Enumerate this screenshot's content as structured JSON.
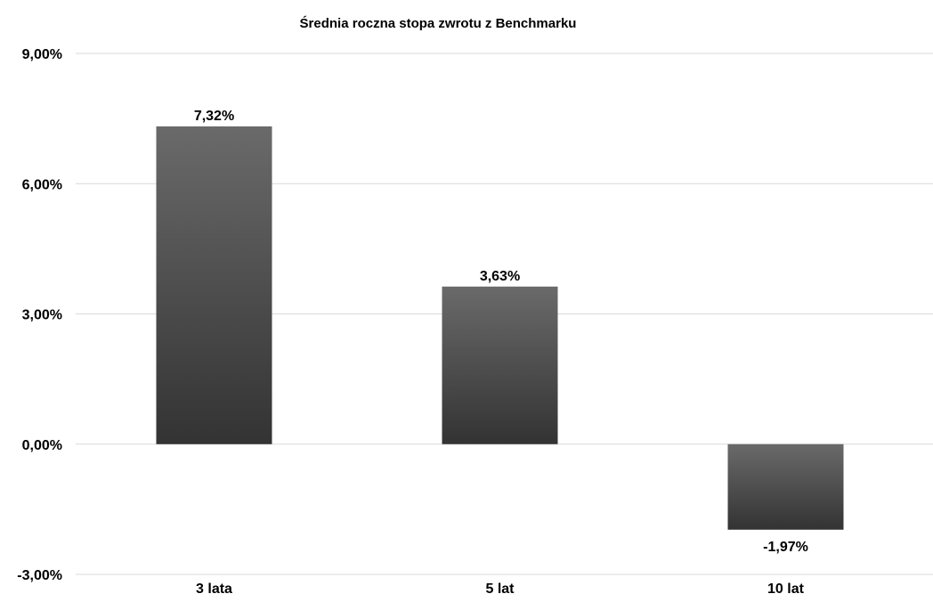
{
  "chart_data": {
    "type": "bar",
    "title": "Średnia roczna stopa zwrotu z Benchmarku",
    "xlabel": "",
    "ylabel": "",
    "categories": [
      "3 lata",
      "5 lat",
      "10 lat"
    ],
    "values": [
      7.32,
      3.63,
      -1.97
    ],
    "value_labels": [
      "7,32%",
      "3,63%",
      "-1,97%"
    ],
    "ylim": [
      -3,
      9
    ],
    "yticks": [
      -3,
      0,
      3,
      6,
      9
    ],
    "ytick_labels": [
      "-3,00%",
      "0,00%",
      "3,00%",
      "6,00%",
      "9,00%"
    ],
    "grid": true,
    "legend": "none",
    "colors": {
      "bar_top": "#6a6a6a",
      "bar_bottom": "#333333",
      "gridline": "#d9d9d9",
      "axis_text": "#000000"
    }
  }
}
